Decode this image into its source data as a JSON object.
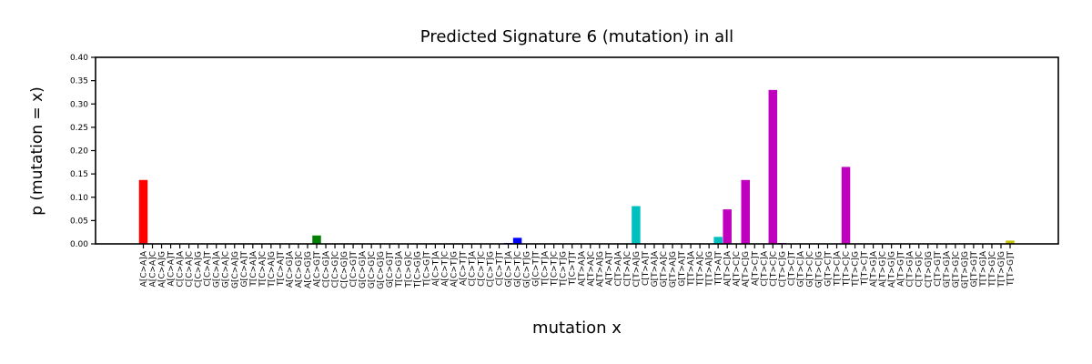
{
  "chart_data": {
    "type": "bar",
    "title": "Predicted Signature 6 (mutation) in all",
    "xlabel": "mutation x",
    "ylabel": "p (mutation = x)",
    "ylim": [
      0,
      0.4
    ],
    "yticks": [
      "0.00",
      "0.05",
      "0.10",
      "0.15",
      "0.20",
      "0.25",
      "0.30",
      "0.35",
      "0.40"
    ],
    "grid": false,
    "legend": "none",
    "categories": [
      "A[C>A]A",
      "A[C>A]C",
      "A[C>A]G",
      "A[C>A]T",
      "C[C>A]A",
      "C[C>A]C",
      "C[C>A]G",
      "C[C>A]T",
      "G[C>A]A",
      "G[C>A]C",
      "G[C>A]G",
      "G[C>A]T",
      "T[C>A]A",
      "T[C>A]C",
      "T[C>A]G",
      "T[C>A]T",
      "A[C>G]A",
      "A[C>G]C",
      "A[C>G]G",
      "A[C>G]T",
      "C[C>G]A",
      "C[C>G]C",
      "C[C>G]G",
      "C[C>G]T",
      "G[C>G]A",
      "G[C>G]C",
      "G[C>G]G",
      "G[C>G]T",
      "T[C>G]A",
      "T[C>G]C",
      "T[C>G]G",
      "T[C>G]T",
      "A[C>T]A",
      "A[C>T]C",
      "A[C>T]G",
      "A[C>T]T",
      "C[C>T]A",
      "C[C>T]C",
      "C[C>T]G",
      "C[C>T]T",
      "G[C>T]A",
      "G[C>T]C",
      "G[C>T]G",
      "G[C>T]T",
      "T[C>T]A",
      "T[C>T]C",
      "T[C>T]G",
      "T[C>T]T",
      "A[T>A]A",
      "A[T>A]C",
      "A[T>A]G",
      "A[T>A]T",
      "C[T>A]A",
      "C[T>A]C",
      "C[T>A]G",
      "C[T>A]T",
      "G[T>A]A",
      "G[T>A]C",
      "G[T>A]G",
      "G[T>A]T",
      "T[T>A]A",
      "T[T>A]C",
      "T[T>A]G",
      "T[T>A]T",
      "A[T>C]A",
      "A[T>C]C",
      "A[T>C]G",
      "A[T>C]T",
      "C[T>C]A",
      "C[T>C]C",
      "C[T>C]G",
      "C[T>C]T",
      "G[T>C]A",
      "G[T>C]C",
      "G[T>C]G",
      "G[T>C]T",
      "T[T>C]A",
      "T[T>C]C",
      "T[T>C]G",
      "T[T>C]T",
      "A[T>G]A",
      "A[T>G]C",
      "A[T>G]G",
      "A[T>G]T",
      "C[T>G]A",
      "C[T>G]C",
      "C[T>G]G",
      "C[T>G]T",
      "G[T>G]A",
      "G[T>G]C",
      "G[T>G]G",
      "G[T>G]T",
      "T[T>G]A",
      "T[T>G]C",
      "T[T>G]G",
      "T[T>G]T"
    ],
    "values": [
      0.137,
      0,
      0,
      0,
      0,
      0,
      0,
      0,
      0,
      0,
      0,
      0,
      0,
      0,
      0,
      0,
      0,
      0,
      0,
      0.018,
      0,
      0,
      0,
      0,
      0,
      0,
      0,
      0,
      0,
      0,
      0,
      0,
      0,
      0,
      0,
      0,
      0,
      0,
      0,
      0,
      0.002,
      0.013,
      0,
      0,
      0,
      0,
      0,
      0,
      0,
      0,
      0,
      0,
      0,
      0,
      0.081,
      0,
      0,
      0,
      0,
      0,
      0,
      0,
      0,
      0.015,
      0.074,
      0,
      0.137,
      0,
      0,
      0.33,
      0.002,
      0,
      0,
      0,
      0,
      0,
      0,
      0.165,
      0,
      0,
      0,
      0,
      0,
      0,
      0,
      0,
      0,
      0,
      0,
      0,
      0,
      0,
      0,
      0,
      0,
      0.007
    ],
    "group_colors": {
      "C>A": "#ff0000",
      "C>G": "#008000",
      "C>T": "#0000ff",
      "T>A": "#00bfbf",
      "T>C": "#bf00bf",
      "T>G": "#bfbf00"
    }
  }
}
